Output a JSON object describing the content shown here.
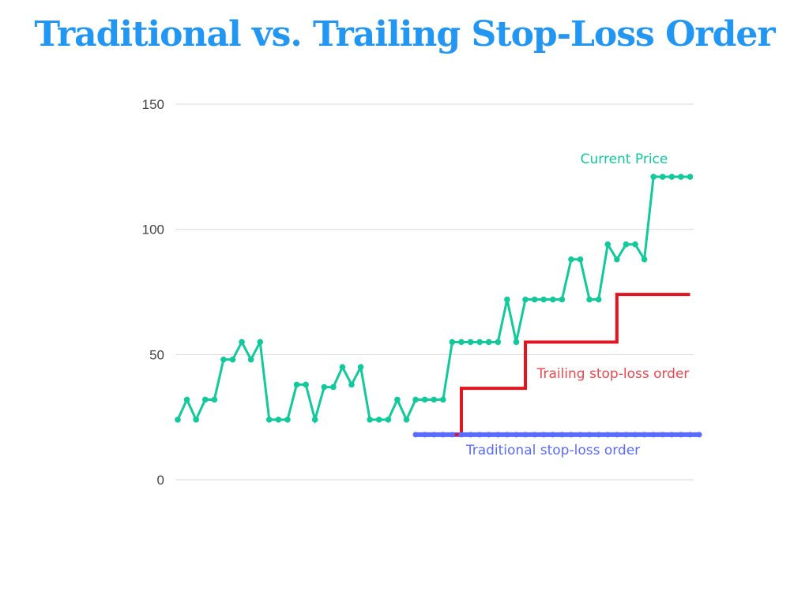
{
  "chart_data": {
    "type": "line",
    "title": "Traditional vs. Trailing Stop-Loss Order",
    "xlabel": "",
    "ylabel": "",
    "ylim": [
      0,
      150
    ],
    "yticks": [
      "0",
      "50",
      "100",
      "150"
    ],
    "grid": true,
    "series": [
      {
        "name": "Current Price",
        "color": "#12c99b",
        "marker": "dot",
        "x": [
          1,
          2,
          3,
          4,
          5,
          6,
          7,
          8,
          9,
          10,
          11,
          12,
          13,
          14,
          15,
          16,
          17,
          18,
          19,
          20,
          21,
          22,
          23,
          24,
          25,
          26,
          27,
          28,
          29,
          30,
          31,
          32,
          33,
          34,
          35,
          36,
          37,
          38,
          39,
          40,
          41,
          42,
          43,
          44,
          45,
          46,
          47,
          48,
          49,
          50,
          51,
          52,
          53,
          54,
          55,
          56,
          57
        ],
        "values": [
          24,
          32,
          24,
          32,
          32,
          48,
          48,
          55,
          48,
          55,
          24,
          24,
          24,
          38,
          38,
          24,
          37,
          37,
          45,
          38,
          45,
          24,
          24,
          24,
          32,
          24,
          32,
          32,
          32,
          32,
          55,
          55,
          55,
          55,
          55,
          55,
          72,
          55,
          72,
          72,
          72,
          72,
          72,
          88,
          88,
          72,
          72,
          94,
          88,
          94,
          94,
          88,
          121,
          121,
          121,
          121,
          121
        ]
      },
      {
        "name": "Trailing stop-loss order",
        "color": "#e3141f",
        "marker": "none",
        "x": [
          31,
          32,
          32,
          38,
          39,
          39,
          48,
          49,
          49,
          57
        ],
        "values": [
          18,
          18,
          36.5,
          36.5,
          36.5,
          55,
          55,
          55,
          74,
          74
        ]
      },
      {
        "name": "Traditional stop-loss order",
        "color": "#5b6bff",
        "marker": "dot",
        "x": [
          27,
          28,
          29,
          30,
          31,
          32,
          33,
          34,
          35,
          36,
          37,
          38,
          39,
          40,
          41,
          42,
          43,
          44,
          45,
          46,
          47,
          48,
          49,
          50,
          51,
          52,
          53,
          54,
          55,
          56,
          57,
          58
        ],
        "values": [
          18,
          18,
          18,
          18,
          18,
          18,
          18,
          18,
          18,
          18,
          18,
          18,
          18,
          18,
          18,
          18,
          18,
          18,
          18,
          18,
          18,
          18,
          18,
          18,
          18,
          18,
          18,
          18,
          18,
          18,
          18,
          18
        ]
      }
    ]
  }
}
